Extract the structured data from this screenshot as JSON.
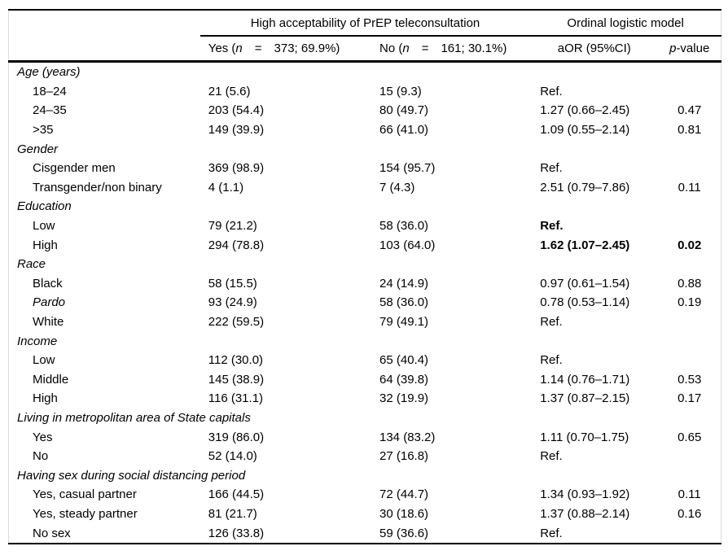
{
  "header": {
    "group_acceptability": "High acceptability of PrEP teleconsultation",
    "group_model": "Ordinal logistic model",
    "yes": {
      "prefix": "Yes (",
      "n": "n",
      "eq": "=",
      "value": "373; 69.9%)"
    },
    "no": {
      "prefix": "No (",
      "n": "n",
      "eq": "=",
      "value": "161; 30.1%)"
    },
    "aor": "aOR (95%CI)",
    "pvalue": {
      "italic": "p",
      "rest": "-value"
    }
  },
  "sections": [
    {
      "header": "Age (years)",
      "rows": [
        {
          "label": "18–24",
          "yes": "21 (5.6)",
          "no": "15 (9.3)",
          "aor": "Ref.",
          "p": ""
        },
        {
          "label": "24–35",
          "yes": "203 (54.4)",
          "no": "80 (49.7)",
          "aor": "1.27 (0.66–2.45)",
          "p": "0.47"
        },
        {
          "label": ">35",
          "yes": "149 (39.9)",
          "no": "66 (41.0)",
          "aor": "1.09 (0.55–2.14)",
          "p": "0.81"
        }
      ]
    },
    {
      "header": "Gender",
      "rows": [
        {
          "label": "Cisgender men",
          "yes": "369 (98.9)",
          "no": "154 (95.7)",
          "aor": "Ref.",
          "p": ""
        },
        {
          "label": "Transgender/non binary",
          "yes": "4 (1.1)",
          "no": "7 (4.3)",
          "aor": "2.51 (0.79–7.86)",
          "p": "0.11"
        }
      ]
    },
    {
      "header": "Education",
      "rows": [
        {
          "label": "Low",
          "yes": "79 (21.2)",
          "no": "58 (36.0)",
          "aor": "Ref.",
          "p": "",
          "aor_bold": true
        },
        {
          "label": "High",
          "yes": "294 (78.8)",
          "no": "103 (64.0)",
          "aor": "1.62 (1.07–2.45)",
          "p": "0.02",
          "aor_bold": true,
          "p_bold": true
        }
      ]
    },
    {
      "header": "Race",
      "rows": [
        {
          "label": "Black",
          "yes": "58 (15.5)",
          "no": "24 (14.9)",
          "aor": "0.97 (0.61–1.54)",
          "p": "0.88"
        },
        {
          "label": "Pardo",
          "yes": "93 (24.9)",
          "no": "58 (36.0)",
          "aor": "0.78 (0.53–1.14)",
          "p": "0.19",
          "label_italic": true
        },
        {
          "label": "White",
          "yes": "222 (59.5)",
          "no": "79 (49.1)",
          "aor": "Ref.",
          "p": ""
        }
      ]
    },
    {
      "header": "Income",
      "rows": [
        {
          "label": "Low",
          "yes": "112 (30.0)",
          "no": "65 (40.4)",
          "aor": "Ref.",
          "p": ""
        },
        {
          "label": "Middle",
          "yes": "145 (38.9)",
          "no": "64 (39.8)",
          "aor": "1.14 (0.76–1.71)",
          "p": "0.53"
        },
        {
          "label": "High",
          "yes": "116 (31.1)",
          "no": "32 (19.9)",
          "aor": "1.37 (0.87–2.15)",
          "p": "0.17"
        }
      ]
    },
    {
      "header": "Living in metropolitan area of State capitals",
      "rows": [
        {
          "label": "Yes",
          "yes": "319 (86.0)",
          "no": "134 (83.2)",
          "aor": "1.11 (0.70–1.75)",
          "p": "0.65"
        },
        {
          "label": "No",
          "yes": "52 (14.0)",
          "no": "27 (16.8)",
          "aor": "Ref.",
          "p": ""
        }
      ]
    },
    {
      "header": "Having sex during social distancing period",
      "rows": [
        {
          "label": "Yes, casual partner",
          "yes": "166 (44.5)",
          "no": "72 (44.7)",
          "aor": "1.34 (0.93–1.92)",
          "p": "0.11"
        },
        {
          "label": "Yes, steady partner",
          "yes": "81 (21.7)",
          "no": "30 (18.6)",
          "aor": "1.37 (0.88–2.14)",
          "p": "0.16"
        },
        {
          "label": "No sex",
          "yes": "126 (33.8)",
          "no": "59 (36.6)",
          "aor": "Ref.",
          "p": ""
        }
      ]
    }
  ],
  "colors": {
    "text": "#000000",
    "rule": "#000000",
    "frame_edge": "#dcdcdc",
    "background": "#ffffff"
  }
}
